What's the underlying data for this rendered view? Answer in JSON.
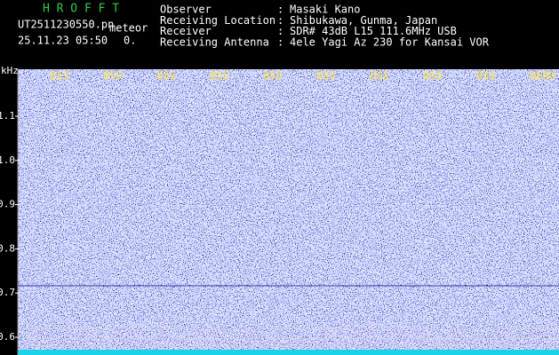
{
  "header": {
    "app": "H R O F F T",
    "file": "UT2511230550.pn",
    "mode": "meteor",
    "timestamp": "25.11.23 05:50",
    "counter": "0."
  },
  "info": [
    {
      "label": "Observer",
      "value": "Masaki Kano"
    },
    {
      "label": "Receiving Location",
      "value": "Shibukawa, Gunma, Japan"
    },
    {
      "label": "Receiver",
      "value": "SDR# 43dB L15 111.6MHz USB"
    },
    {
      "label": "Receiving Antenna",
      "value": "4ele Yagi Az 230 for Kansai VOR"
    }
  ],
  "separator": ":",
  "y_unit": "kHz",
  "y_labels": [
    "1.1",
    "1.0",
    "0.9",
    "0.8",
    "0.7",
    "0.6"
  ],
  "x_labels": [
    "055",
    "055",
    "055",
    "055",
    "055",
    "055",
    "055",
    "055",
    "055",
    "0600"
  ]
}
